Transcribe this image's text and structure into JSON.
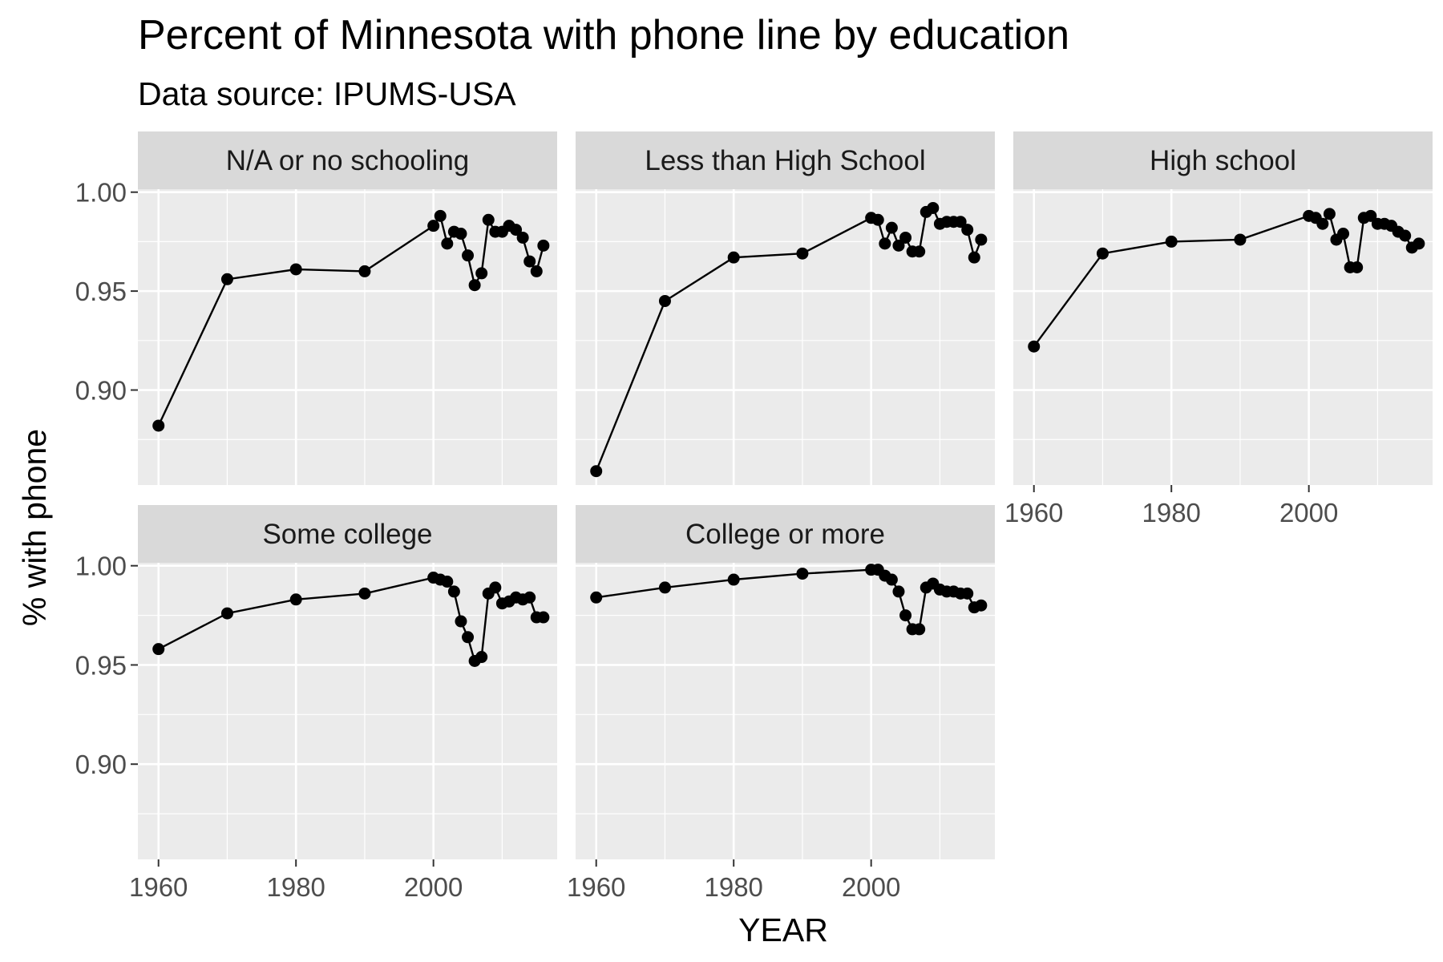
{
  "chart_data": {
    "type": "line",
    "title": "Percent of Minnesota with phone line by education",
    "subtitle": "Data source: IPUMS-USA",
    "xlabel": "YEAR",
    "ylabel": "% with phone",
    "xlim": [
      1957,
      2018
    ],
    "ylim": [
      0.852,
      1.0015
    ],
    "x_ticks": [
      1960,
      1980,
      2000
    ],
    "x_tick_labels": [
      "1960",
      "1980",
      "2000"
    ],
    "y_ticks": [
      0.9,
      0.95,
      1.0
    ],
    "y_tick_labels": [
      "0.90",
      "0.95",
      "1.00"
    ],
    "grid": true,
    "legend": "none",
    "line_color": "#000000",
    "point_color": "#000000",
    "panel_background": "#ebebeb",
    "strip_background": "#d9d9d9",
    "x": [
      1960,
      1970,
      1980,
      1990,
      2000,
      2001,
      2002,
      2003,
      2004,
      2005,
      2006,
      2007,
      2008,
      2009,
      2010,
      2011,
      2012,
      2013,
      2014,
      2015,
      2016
    ],
    "facets": [
      {
        "name": "N/A or no schooling",
        "values": [
          0.882,
          0.956,
          0.961,
          0.96,
          0.983,
          0.988,
          0.974,
          0.98,
          0.979,
          0.968,
          0.953,
          0.959,
          0.986,
          0.98,
          0.98,
          0.983,
          0.981,
          0.977,
          0.965,
          0.96,
          0.973
        ]
      },
      {
        "name": "Less than High School",
        "values": [
          0.859,
          0.945,
          0.967,
          0.969,
          0.987,
          0.986,
          0.974,
          0.982,
          0.973,
          0.977,
          0.97,
          0.97,
          0.99,
          0.992,
          0.984,
          0.985,
          0.985,
          0.985,
          0.981,
          0.967,
          0.976
        ]
      },
      {
        "name": "High school",
        "values": [
          0.922,
          0.969,
          0.975,
          0.976,
          0.988,
          0.987,
          0.984,
          0.989,
          0.976,
          0.979,
          0.962,
          0.962,
          0.987,
          0.988,
          0.984,
          0.984,
          0.983,
          0.98,
          0.978,
          0.972,
          0.974
        ]
      },
      {
        "name": "Some college",
        "values": [
          0.958,
          0.976,
          0.983,
          0.986,
          0.994,
          0.993,
          0.992,
          0.987,
          0.972,
          0.964,
          0.952,
          0.954,
          0.986,
          0.989,
          0.981,
          0.982,
          0.984,
          0.983,
          0.984,
          0.974,
          0.974
        ]
      },
      {
        "name": "College or more",
        "values": [
          0.984,
          0.989,
          0.993,
          0.996,
          0.998,
          0.998,
          0.995,
          0.993,
          0.987,
          0.975,
          0.968,
          0.968,
          0.989,
          0.991,
          0.988,
          0.987,
          0.987,
          0.986,
          0.986,
          0.979,
          0.98
        ]
      }
    ]
  }
}
